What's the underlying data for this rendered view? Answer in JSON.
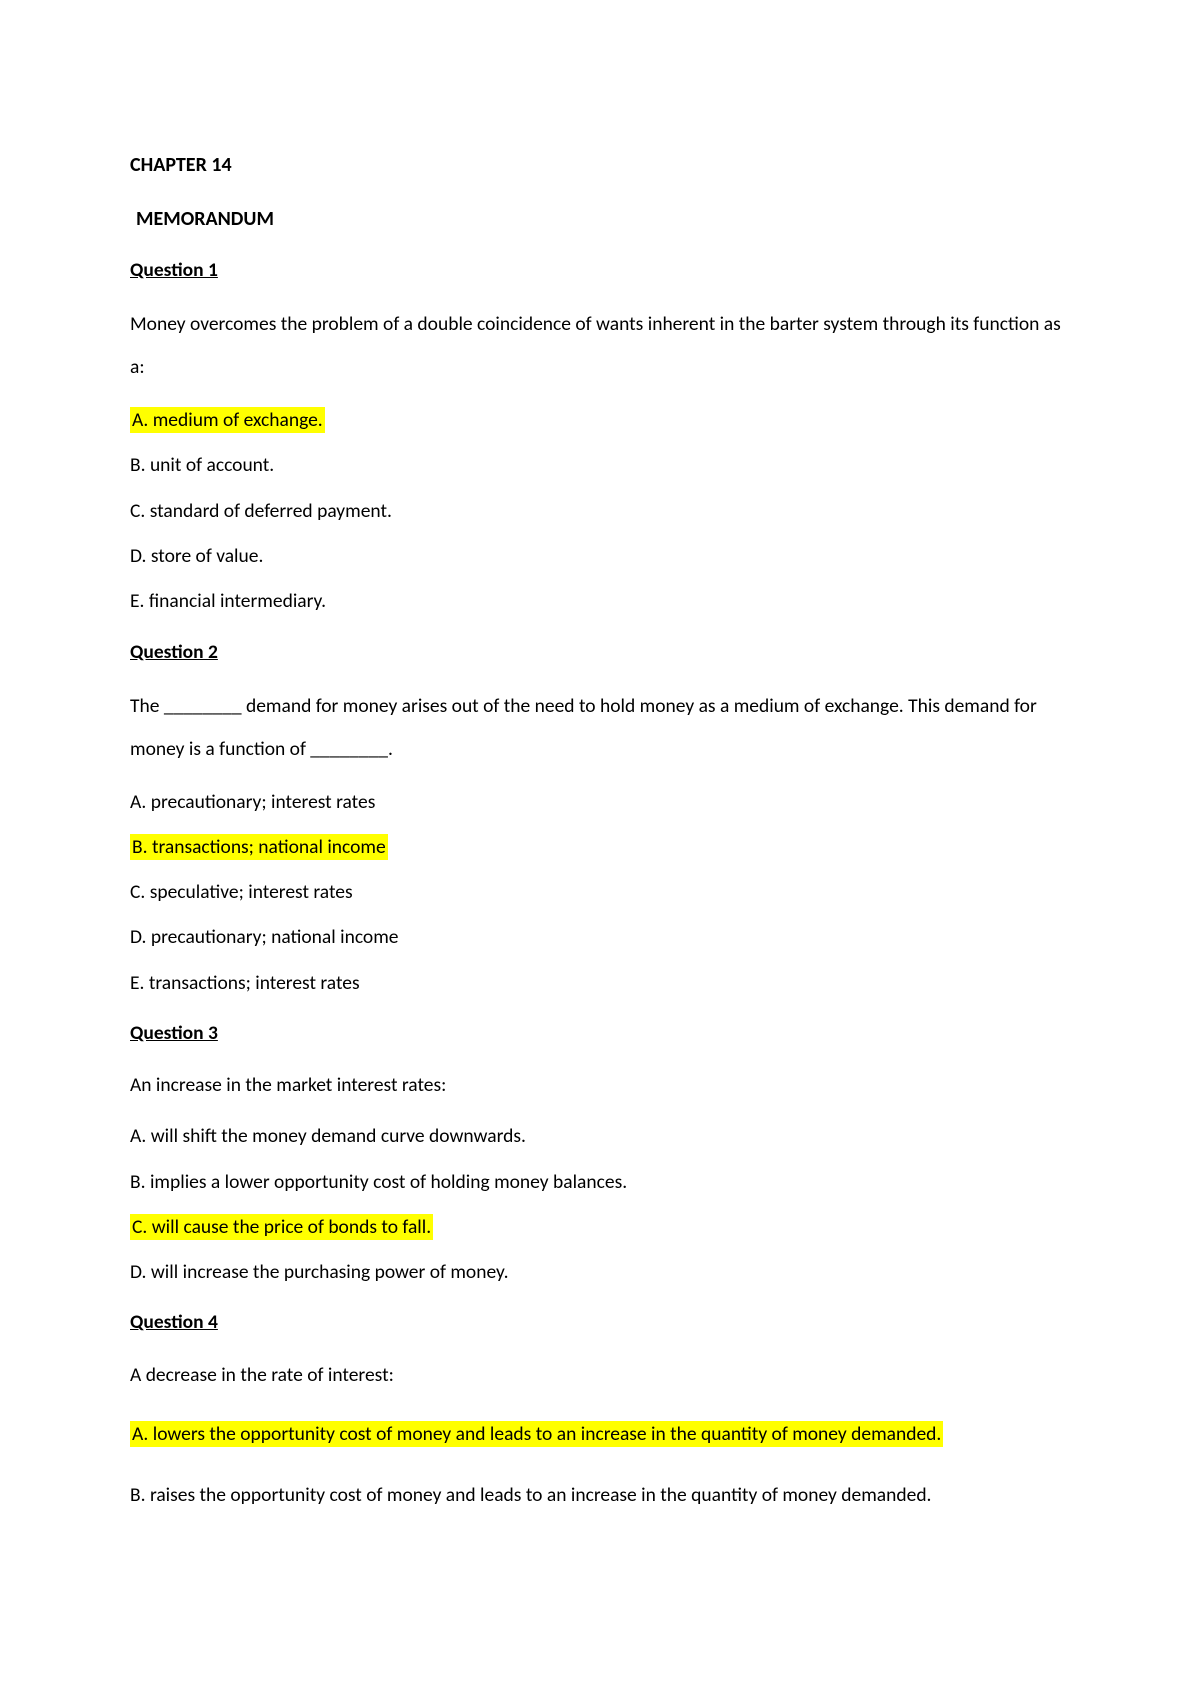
{
  "chapter_title": "CHAPTER 14",
  "memorandum": "MEMORANDUM",
  "questions": [
    {
      "heading": "Question 1 ",
      "text": "Money overcomes the problem of a double coincidence of wants inherent in the barter system through its function as a:",
      "options": [
        {
          "text": "A. medium of exchange.",
          "highlighted": true
        },
        {
          "text": "B. unit of account.",
          "highlighted": false
        },
        {
          "text": "C. standard of deferred payment.",
          "highlighted": false
        },
        {
          "text": "D. store of value.",
          "highlighted": false
        },
        {
          "text": "E. financial intermediary.",
          "highlighted": false
        }
      ]
    },
    {
      "heading": "Question 2 ",
      "text": "The ________ demand for money arises out of the need to hold money as a medium of exchange. This demand for money is a function of ________.",
      "options": [
        {
          "text": "A. precautionary; interest rates",
          "highlighted": false
        },
        {
          "text": "B. transactions; national income",
          "highlighted": true
        },
        {
          "text": "C. speculative; interest rates",
          "highlighted": false
        },
        {
          "text": "D. precautionary; national income",
          "highlighted": false
        },
        {
          "text": "E. transactions; interest rates",
          "highlighted": false
        }
      ]
    },
    {
      "heading": "Question 3 ",
      "text": "An increase in the market interest rates:",
      "options": [
        {
          "text": "A. will shift the money demand curve downwards.",
          "highlighted": false
        },
        {
          "text": "B. implies a lower opportunity cost of holding money balances.",
          "highlighted": false
        },
        {
          "text": "C. will cause the price of bonds to fall.",
          "highlighted": true
        },
        {
          "text": "D. will increase the purchasing power of money.",
          "highlighted": false
        }
      ]
    },
    {
      "heading": "Question 4",
      "text": "A decrease in the rate of interest:",
      "options": [
        {
          "text": "A. lowers the opportunity cost of money and leads to an increase in the quantity of  money demanded.",
          "highlighted": true
        },
        {
          "text": "B. raises the opportunity cost of money and leads to an increase in the quantity of money demanded.",
          "highlighted": false
        }
      ]
    }
  ]
}
